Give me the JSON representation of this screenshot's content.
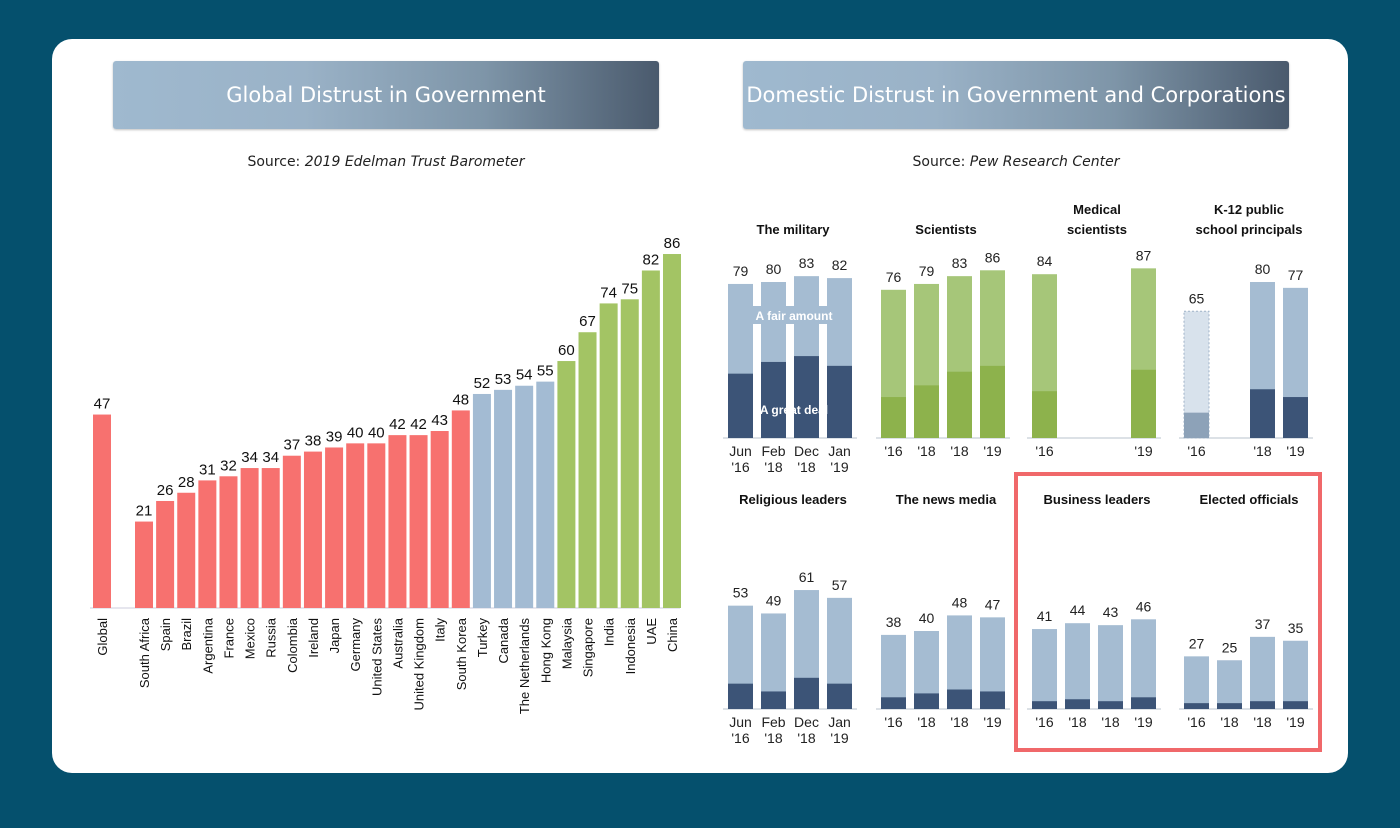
{
  "left_panel": {
    "title": "Global Distrust in Government",
    "source_prefix": "Source: ",
    "source_name": "2019 Edelman Trust Barometer"
  },
  "right_panel": {
    "title": "Domestic Distrust in Government and Corporations",
    "source_prefix": "Source: ",
    "source_name": "Pew Research Center",
    "legend": {
      "fair_amount": "A fair amount",
      "great_deal": "A great deal"
    },
    "highlight": [
      "Business leaders",
      "Elected officials"
    ]
  },
  "colors": {
    "red": "#f7716f",
    "blue": "#a3bbd3",
    "green": "#a3c464",
    "pew_light": "#a5bcd2",
    "pew_dark": "#3c5477",
    "pew_green_light": "#a6c679",
    "pew_green_dark": "#8db24c",
    "highlight": "#f0686a"
  },
  "chart_data": [
    {
      "type": "bar",
      "title": "Global Distrust in Government",
      "ylim": [
        0,
        100
      ],
      "grid": false,
      "categories": [
        "Global",
        "South Africa",
        "Spain",
        "Brazil",
        "Argentina",
        "France",
        "Mexico",
        "Russia",
        "Colombia",
        "Ireland",
        "Japan",
        "Germany",
        "United States",
        "Australia",
        "United Kingdom",
        "Italy",
        "South Korea",
        "Turkey",
        "Canada",
        "The Netherlands",
        "Hong Kong",
        "Malaysia",
        "Singapore",
        "India",
        "Indonesia",
        "UAE",
        "China"
      ],
      "values": [
        47,
        21,
        26,
        28,
        31,
        32,
        34,
        34,
        37,
        38,
        39,
        40,
        40,
        42,
        42,
        43,
        48,
        52,
        53,
        54,
        55,
        60,
        67,
        74,
        75,
        82,
        86
      ],
      "groups": [
        "red",
        "red",
        "red",
        "red",
        "red",
        "red",
        "red",
        "red",
        "red",
        "red",
        "red",
        "red",
        "red",
        "red",
        "red",
        "red",
        "red",
        "blue",
        "blue",
        "blue",
        "blue",
        "green",
        "green",
        "green",
        "green",
        "green",
        "green"
      ]
    },
    {
      "type": "bar",
      "title": "The military",
      "categories": [
        "Jun\n'16",
        "Feb\n'18",
        "Dec\n'18",
        "Jan\n'19"
      ],
      "series": [
        {
          "name": "A fair amount",
          "values": [
            79,
            80,
            83,
            82
          ]
        },
        {
          "name": "A great deal",
          "values": [
            33,
            39,
            42,
            37
          ]
        }
      ],
      "style": "blue"
    },
    {
      "type": "bar",
      "title": "Scientists",
      "categories": [
        "'16",
        "'18",
        "'18",
        "'19"
      ],
      "series": [
        {
          "values": [
            76,
            79,
            83,
            86
          ]
        },
        {
          "values": [
            21,
            27,
            34,
            37
          ]
        }
      ],
      "style": "green"
    },
    {
      "type": "bar",
      "title": "Medical\nscientists",
      "categories": [
        "'16",
        "",
        "",
        "'19"
      ],
      "series": [
        {
          "values": [
            84,
            null,
            null,
            87
          ]
        },
        {
          "values": [
            24,
            null,
            null,
            35
          ]
        }
      ],
      "style": "green"
    },
    {
      "type": "bar",
      "title": "K-12 public\nschool principals",
      "categories": [
        "'16",
        "",
        "'18",
        "'19"
      ],
      "series": [
        {
          "values": [
            65,
            null,
            80,
            77
          ]
        },
        {
          "values": [
            13,
            null,
            25,
            21
          ]
        }
      ],
      "style": "blue",
      "faded": [
        0
      ]
    },
    {
      "type": "bar",
      "title": "Religious leaders",
      "categories": [
        "Jun\n'16",
        "Feb\n'18",
        "Dec\n'18",
        "Jan\n'19"
      ],
      "series": [
        {
          "values": [
            53,
            49,
            61,
            57
          ]
        },
        {
          "values": [
            13,
            9,
            16,
            13
          ]
        }
      ],
      "style": "blue"
    },
    {
      "type": "bar",
      "title": "The news media",
      "categories": [
        "'16",
        "'18",
        "'18",
        "'19"
      ],
      "series": [
        {
          "values": [
            38,
            40,
            48,
            47
          ]
        },
        {
          "values": [
            6,
            8,
            10,
            9
          ]
        }
      ],
      "style": "blue"
    },
    {
      "type": "bar",
      "title": "Business leaders",
      "categories": [
        "'16",
        "'18",
        "'18",
        "'19"
      ],
      "series": [
        {
          "values": [
            41,
            44,
            43,
            46
          ]
        },
        {
          "values": [
            4,
            5,
            4,
            6
          ]
        }
      ],
      "style": "blue"
    },
    {
      "type": "bar",
      "title": "Elected officials",
      "categories": [
        "'16",
        "'18",
        "'18",
        "'19"
      ],
      "series": [
        {
          "values": [
            27,
            25,
            37,
            35
          ]
        },
        {
          "values": [
            3,
            3,
            4,
            4
          ]
        }
      ],
      "style": "blue"
    }
  ]
}
